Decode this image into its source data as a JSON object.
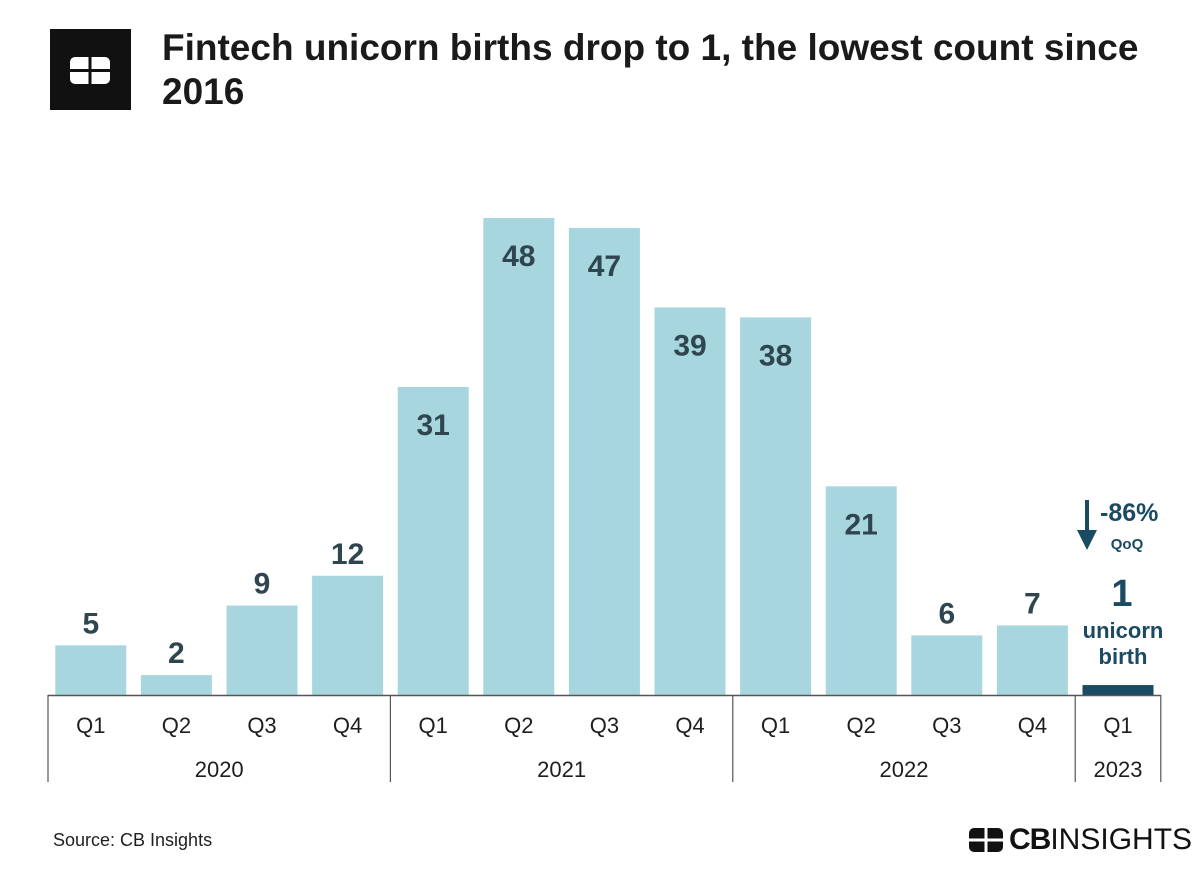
{
  "header": {
    "title": "Fintech unicorn births drop to 1, the lowest count since 2016",
    "logo_icon": "cb-insights-logo-icon"
  },
  "chart_data": {
    "type": "bar",
    "title": "Fintech unicorn births drop to 1, the lowest count since 2016",
    "xlabel": "",
    "ylabel": "",
    "ylim": [
      0,
      50
    ],
    "grid": false,
    "categories": [
      "Q1",
      "Q2",
      "Q3",
      "Q4",
      "Q1",
      "Q2",
      "Q3",
      "Q4",
      "Q1",
      "Q2",
      "Q3",
      "Q4",
      "Q1"
    ],
    "years": [
      {
        "label": "2020",
        "count": 4
      },
      {
        "label": "2021",
        "count": 4
      },
      {
        "label": "2022",
        "count": 4
      },
      {
        "label": "2023",
        "count": 1
      }
    ],
    "values": [
      5,
      2,
      9,
      12,
      31,
      48,
      47,
      39,
      38,
      21,
      6,
      7,
      1
    ],
    "data_labels": [
      "5",
      "2",
      "9",
      "12",
      "31",
      "48",
      "47",
      "39",
      "38",
      "21",
      "6",
      "7",
      ""
    ],
    "colors": {
      "bar": "#a7d6df",
      "highlight": "#1b4a63",
      "label": "#2f4650",
      "axis": "#555555"
    },
    "annotation": {
      "change": "-86%",
      "change_basis": "QoQ",
      "value": "1",
      "line1": "unicorn",
      "line2": "birth",
      "arrow_icon": "down-arrow-icon"
    }
  },
  "footer": {
    "source": "Source: CB Insights",
    "brand_cb": "CB",
    "brand_insights": "INSIGHTS"
  }
}
